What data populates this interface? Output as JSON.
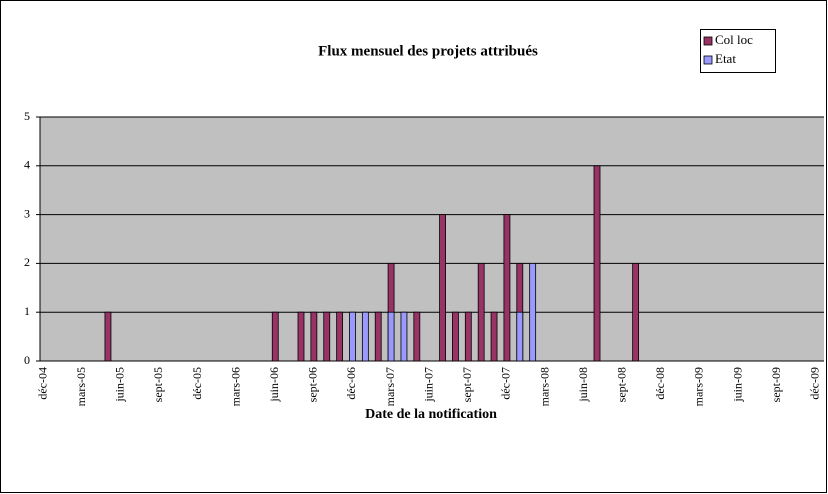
{
  "chart_data": {
    "type": "bar",
    "title": "Flux mensuel des projets attribués",
    "x_label": "Date de la notification",
    "categories": [
      "déc-04",
      null,
      null,
      "mars-05",
      null,
      null,
      "juin-05",
      null,
      null,
      "sept-05",
      null,
      null,
      "déc-05",
      null,
      null,
      "mars-06",
      null,
      null,
      "juin-06",
      null,
      null,
      "sept-06",
      null,
      null,
      "déc-06",
      null,
      null,
      "mars-07",
      null,
      null,
      "juin-07",
      null,
      null,
      "sept-07",
      null,
      null,
      "déc-07",
      null,
      null,
      "mars-08",
      null,
      null,
      "juin-08",
      null,
      null,
      "sept-08",
      null,
      null,
      "déc-08",
      null,
      null,
      "mars-09",
      null,
      null,
      "juin-09",
      null,
      null,
      "sept-09",
      null,
      null,
      "déc-09"
    ],
    "series": [
      {
        "name": "Col loc",
        "color": "#993366",
        "values": [
          null,
          null,
          null,
          null,
          null,
          1,
          null,
          null,
          null,
          null,
          null,
          null,
          null,
          null,
          null,
          null,
          null,
          null,
          1,
          null,
          1,
          1,
          1,
          1,
          null,
          null,
          1,
          2,
          null,
          1,
          null,
          3,
          1,
          1,
          2,
          1,
          3,
          2,
          null,
          null,
          null,
          null,
          null,
          4,
          null,
          null,
          2,
          null,
          null,
          null,
          null,
          null,
          null,
          null,
          null,
          null,
          null,
          null,
          null,
          null,
          null
        ]
      },
      {
        "name": "Etat",
        "color": "#9999FF",
        "values": [
          null,
          null,
          null,
          null,
          null,
          null,
          null,
          null,
          null,
          null,
          null,
          null,
          null,
          null,
          null,
          null,
          null,
          null,
          null,
          null,
          null,
          null,
          null,
          null,
          1,
          1,
          null,
          1,
          1,
          null,
          null,
          null,
          null,
          null,
          null,
          null,
          null,
          1,
          2,
          null,
          null,
          null,
          null,
          null,
          null,
          null,
          null,
          null,
          null,
          null,
          null,
          null,
          null,
          null,
          null,
          null,
          null,
          null,
          null,
          null,
          null
        ]
      }
    ],
    "ylim": [
      0,
      5
    ],
    "yticks": [
      0,
      1,
      2,
      3,
      4,
      5
    ],
    "grid": true,
    "legend": "top-right"
  }
}
